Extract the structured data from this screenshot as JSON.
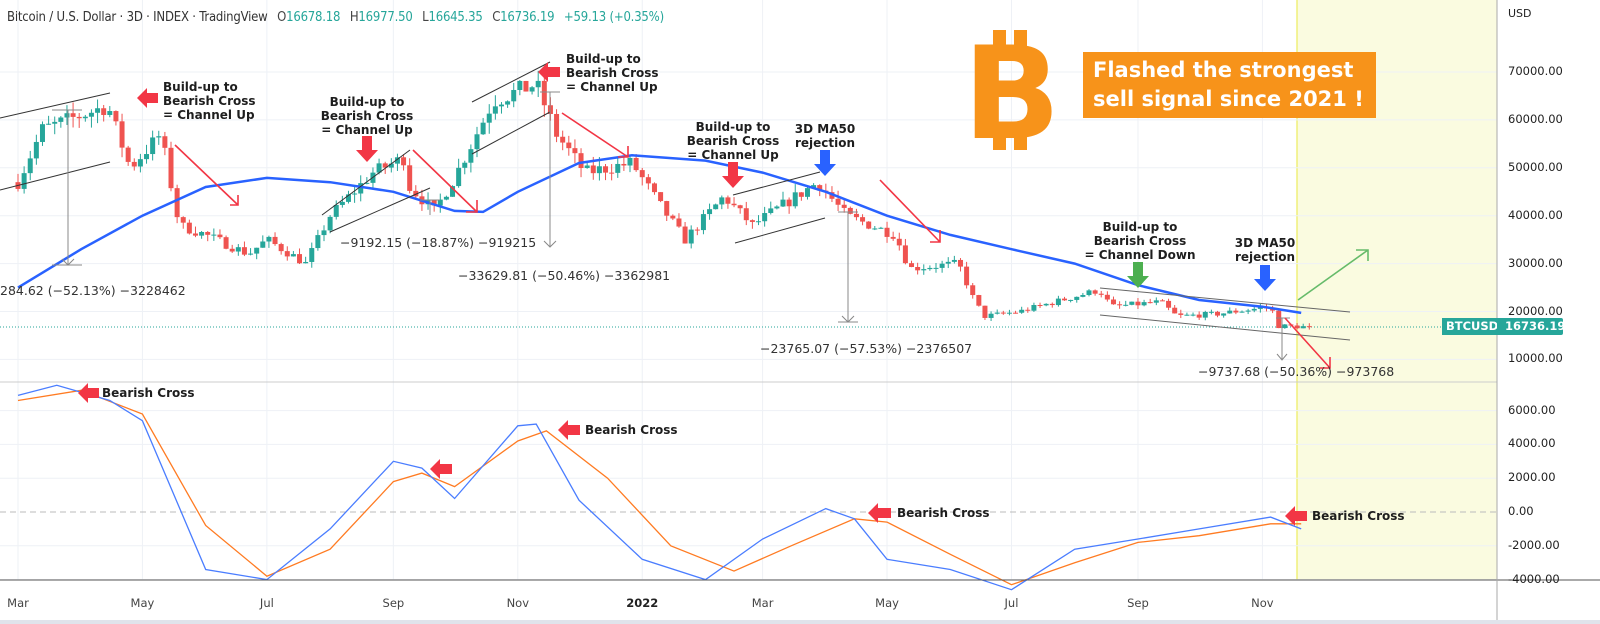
{
  "header": {
    "title": "Bitcoin / U.S. Dollar · 3D · INDEX · TradingView",
    "o_label": "O",
    "o": "16678.18",
    "h_label": "H",
    "h": "16977.50",
    "l_label": "L",
    "l": "16645.35",
    "c_label": "C",
    "c": "16736.19",
    "change": "+59.13 (+0.35%)"
  },
  "price_axis": {
    "unit": "USD",
    "ticks": [
      "70000.00",
      "60000.00",
      "50000.00",
      "40000.00",
      "30000.00",
      "20000.00",
      "10000.00"
    ],
    "last_symbol": "BTCUSD",
    "last_value": "16736.19"
  },
  "macd_axis": {
    "ticks": [
      "6000.00",
      "4000.00",
      "2000.00",
      "0.00",
      "-2000.00",
      "-4000.00"
    ]
  },
  "time_axis": [
    "Mar",
    "May",
    "Jul",
    "Sep",
    "Nov",
    "2022",
    "Mar",
    "May",
    "Jul",
    "Sep",
    "Nov"
  ],
  "headline": {
    "line1": "Flashed the strongest",
    "line2": "sell signal since 2021 !"
  },
  "logo": "B",
  "annotations": {
    "build1": [
      "Build-up to",
      "Bearish Cross",
      "= Channel Up"
    ],
    "build2": [
      "Build-up to",
      "Bearish Cross",
      "= Channel Up"
    ],
    "build3": [
      "Build-up to",
      "Bearish Cross",
      "= Channel Up"
    ],
    "build4": [
      "Build-up to",
      "Bearish Cross",
      "= Channel Up"
    ],
    "ma1": [
      "3D MA50",
      "rejection"
    ],
    "build5": [
      "Build-up to",
      "Bearish Cross",
      "= Channel Down"
    ],
    "ma2": [
      "3D MA50",
      "rejection"
    ],
    "measures": [
      "284.62 (−52.13%) −3228462",
      "−9192.15 (−18.87%) −919215",
      "−33629.81 (−50.46%) −3362981",
      "−23765.07 (−57.53%) −2376507",
      "−9737.68 (−50.36%) −973768"
    ],
    "bearish_cross": "Bearish Cross"
  },
  "colors": {
    "up": "#26a69a",
    "down": "#ef5350",
    "ma": "#2962ff",
    "signal": "#ff7b22",
    "banner": "#f7931a",
    "highlight": "#fafbe0"
  },
  "chart_data": {
    "type": "line",
    "title": "Bitcoin / U.S. Dollar · 3D",
    "price_ylim": [
      5000,
      78000
    ],
    "macd_ylim": [
      -4200,
      7000
    ],
    "price_keyframes": [
      [
        "2021-03-01",
        47000
      ],
      [
        "2021-03-13",
        58000
      ],
      [
        "2021-04-14",
        63000
      ],
      [
        "2021-04-25",
        50000
      ],
      [
        "2021-05-10",
        57000
      ],
      [
        "2021-05-19",
        38000
      ],
      [
        "2021-06-01",
        36000
      ],
      [
        "2021-06-22",
        32000
      ],
      [
        "2021-07-01",
        35000
      ],
      [
        "2021-07-20",
        30000
      ],
      [
        "2021-08-01",
        40000
      ],
      [
        "2021-08-22",
        49000
      ],
      [
        "2021-09-06",
        52000
      ],
      [
        "2021-09-09",
        46000
      ],
      [
        "2021-09-21",
        41000
      ],
      [
        "2021-10-01",
        48000
      ],
      [
        "2021-10-20",
        64000
      ],
      [
        "2021-11-10",
        67500
      ],
      [
        "2021-11-20",
        57000
      ],
      [
        "2021-12-04",
        49000
      ],
      [
        "2021-12-27",
        51000
      ],
      [
        "2022-01-10",
        42000
      ],
      [
        "2022-01-22",
        35000
      ],
      [
        "2022-02-10",
        44000
      ],
      [
        "2022-02-24",
        38000
      ],
      [
        "2022-03-28",
        47000
      ],
      [
        "2022-04-11",
        40000
      ],
      [
        "2022-05-05",
        36000
      ],
      [
        "2022-05-12",
        29000
      ],
      [
        "2022-06-05",
        30000
      ],
      [
        "2022-06-13",
        22000
      ],
      [
        "2022-06-18",
        19000
      ],
      [
        "2022-07-05",
        20000
      ],
      [
        "2022-08-13",
        24500
      ],
      [
        "2022-08-19",
        21000
      ],
      [
        "2022-09-12",
        22000
      ],
      [
        "2022-09-20",
        19000
      ],
      [
        "2022-10-10",
        19500
      ],
      [
        "2022-11-05",
        21000
      ],
      [
        "2022-11-09",
        17000
      ],
      [
        "2022-11-26",
        16736
      ]
    ],
    "ma50": [
      [
        "2021-03-01",
        25000
      ],
      [
        "2021-04-01",
        33000
      ],
      [
        "2021-05-01",
        40000
      ],
      [
        "2021-06-01",
        46000
      ],
      [
        "2021-07-01",
        47900
      ],
      [
        "2021-08-01",
        47000
      ],
      [
        "2021-09-01",
        45000
      ],
      [
        "2021-10-01",
        41000
      ],
      [
        "2021-10-15",
        40800
      ],
      [
        "2021-11-01",
        45000
      ],
      [
        "2021-12-01",
        51000
      ],
      [
        "2021-12-27",
        52600
      ],
      [
        "2022-02-01",
        51500
      ],
      [
        "2022-03-01",
        49000
      ],
      [
        "2022-04-01",
        45000
      ],
      [
        "2022-05-01",
        40000
      ],
      [
        "2022-06-01",
        36000
      ],
      [
        "2022-07-01",
        33000
      ],
      [
        "2022-08-01",
        30000
      ],
      [
        "2022-09-01",
        25500
      ],
      [
        "2022-10-01",
        22400
      ],
      [
        "2022-11-01",
        21000
      ],
      [
        "2022-11-20",
        19700
      ]
    ],
    "macd": [
      [
        "2021-03-01",
        6900
      ],
      [
        "2021-03-20",
        7500
      ],
      [
        "2021-04-15",
        6600
      ],
      [
        "2021-05-01",
        5400
      ],
      [
        "2021-06-01",
        -3400
      ],
      [
        "2021-07-01",
        -4000
      ],
      [
        "2021-08-01",
        -1000
      ],
      [
        "2021-09-01",
        3000
      ],
      [
        "2021-09-15",
        2600
      ],
      [
        "2021-10-01",
        800
      ],
      [
        "2021-11-01",
        5100
      ],
      [
        "2021-11-10",
        5200
      ],
      [
        "2021-12-01",
        700
      ],
      [
        "2022-01-01",
        -2800
      ],
      [
        "2022-02-01",
        -4000
      ],
      [
        "2022-03-01",
        -1600
      ],
      [
        "2022-04-01",
        200
      ],
      [
        "2022-04-15",
        -400
      ],
      [
        "2022-05-01",
        -2800
      ],
      [
        "2022-06-01",
        -3400
      ],
      [
        "2022-07-01",
        -4600
      ],
      [
        "2022-08-01",
        -2200
      ],
      [
        "2022-09-01",
        -1600
      ],
      [
        "2022-10-01",
        -1000
      ],
      [
        "2022-11-05",
        -300
      ],
      [
        "2022-11-20",
        -1000
      ]
    ],
    "signal": [
      [
        "2021-03-01",
        6600
      ],
      [
        "2021-04-01",
        7200
      ],
      [
        "2021-05-01",
        5800
      ],
      [
        "2021-06-01",
        -800
      ],
      [
        "2021-07-01",
        -3800
      ],
      [
        "2021-08-01",
        -2200
      ],
      [
        "2021-09-01",
        1800
      ],
      [
        "2021-09-15",
        2300
      ],
      [
        "2021-10-01",
        1500
      ],
      [
        "2021-11-01",
        4200
      ],
      [
        "2021-11-15",
        4800
      ],
      [
        "2021-12-15",
        2000
      ],
      [
        "2022-01-15",
        -2000
      ],
      [
        "2022-02-15",
        -3500
      ],
      [
        "2022-03-15",
        -2000
      ],
      [
        "2022-04-15",
        -400
      ],
      [
        "2022-05-01",
        -600
      ],
      [
        "2022-06-01",
        -2500
      ],
      [
        "2022-07-01",
        -4300
      ],
      [
        "2022-08-01",
        -3000
      ],
      [
        "2022-09-01",
        -1800
      ],
      [
        "2022-10-01",
        -1400
      ],
      [
        "2022-11-05",
        -700
      ],
      [
        "2022-11-20",
        -700
      ]
    ]
  }
}
